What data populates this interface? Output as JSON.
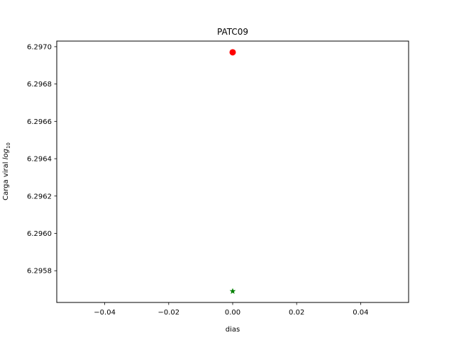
{
  "chart_data": {
    "type": "scatter",
    "title": "PATC09",
    "xlabel": "dias",
    "ylabel_main": "Carga viral ",
    "ylabel_math": "log",
    "ylabel_sub": "10",
    "xlim": [
      -0.055,
      0.055
    ],
    "ylim": [
      6.29563,
      6.29703
    ],
    "xticks": [
      -0.04,
      -0.02,
      0.0,
      0.02,
      0.04
    ],
    "xtick_labels": [
      "−0.04",
      "−0.02",
      "0.00",
      "0.02",
      "0.04"
    ],
    "yticks": [
      6.2958,
      6.296,
      6.2962,
      6.2964,
      6.2966,
      6.2968,
      6.297
    ],
    "ytick_labels": [
      "6.2958",
      "6.2960",
      "6.2962",
      "6.2964",
      "6.2966",
      "6.2968",
      "6.2970"
    ],
    "series": [
      {
        "marker": "circle",
        "color": "#ff0000",
        "x": [
          0.0
        ],
        "y": [
          6.29697
        ]
      },
      {
        "marker": "star",
        "color": "#008000",
        "x": [
          0.0
        ],
        "y": [
          6.29569
        ]
      }
    ],
    "grid": false,
    "legend": false
  }
}
